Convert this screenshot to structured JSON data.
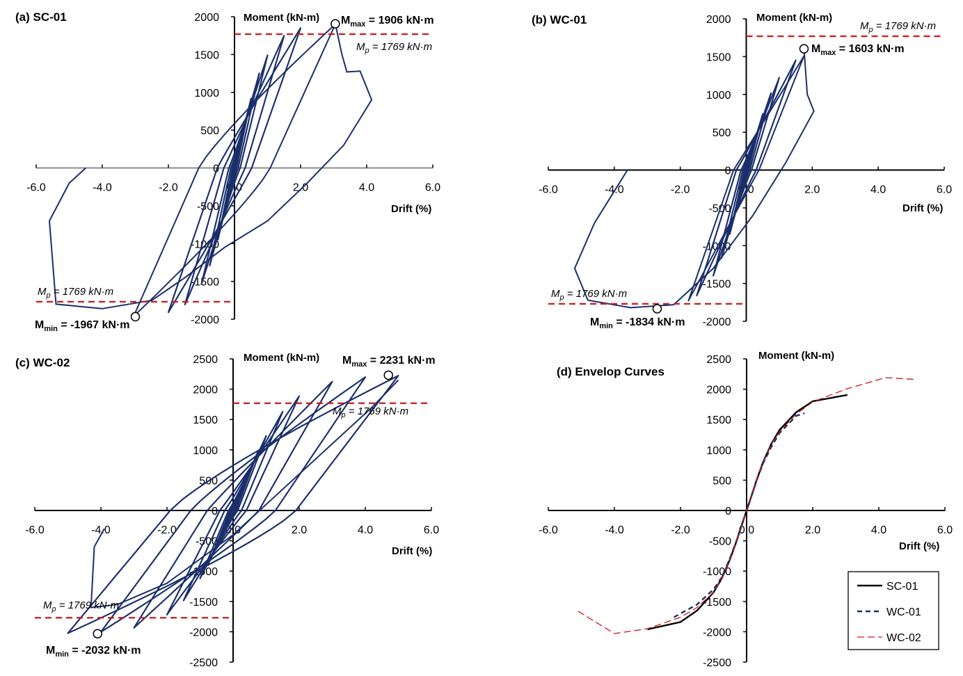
{
  "colors": {
    "curve": "#1b2f6b",
    "ref": "#cc1a1a",
    "axis": "#000000",
    "zero_gray": "#8c8c8c"
  },
  "chart_data": [
    {
      "id": "a",
      "type": "line",
      "title": "(a) SC-01",
      "xlabel": "Drift (%)",
      "ylabel": "Moment (kN-m)",
      "xlim": [
        -6,
        6
      ],
      "ylim": [
        -2000,
        2000
      ],
      "xticks": [
        "-6.0",
        "-4.0",
        "-2.0",
        "0.0",
        "2.0",
        "4.0",
        "6.0"
      ],
      "yticks": [
        "2000",
        "1500",
        "1000",
        "500",
        "0",
        "-500",
        "-1000",
        "-1500",
        "-2000"
      ],
      "mp_value": 1769,
      "mp_text": "= 1769 kN·m",
      "mp_sub": "p",
      "mp_sym": "M",
      "max": {
        "x": 3.05,
        "y": 1906,
        "sym": "M",
        "sub": "max",
        "text": "= 1906 kN·m"
      },
      "min": {
        "x": -3.0,
        "y": -1967,
        "sym": "M",
        "sub": "min",
        "text": "= -1967 kN·m"
      },
      "amplitudes": [
        0.2,
        0.2,
        0.3,
        0.3,
        0.5,
        0.5,
        0.75,
        0.75,
        1.0,
        1.0,
        1.5,
        1.5,
        2.0,
        2.0,
        3.05
      ]
    },
    {
      "id": "b",
      "type": "line",
      "title": "(b) WC-01",
      "xlabel": "Drift (%)",
      "ylabel": "Moment (kN-m)",
      "xlim": [
        -6,
        6
      ],
      "ylim": [
        -2000,
        2000
      ],
      "xticks": [
        "-6.0",
        "-4.0",
        "-2.0",
        "0.0",
        "2.0",
        "4.0",
        "6.0"
      ],
      "yticks": [
        "2000",
        "1500",
        "1000",
        "500",
        "0",
        "-500",
        "-1000",
        "-1500",
        "-2000"
      ],
      "mp_value": 1769,
      "mp_text": "= 1769 kN·m",
      "mp_sub": "p",
      "mp_sym": "M",
      "max": {
        "x": 1.75,
        "y": 1603,
        "sym": "M",
        "sub": "max",
        "text": "= 1603 kN·m"
      },
      "min": {
        "x": -2.7,
        "y": -1834,
        "sym": "M",
        "sub": "min",
        "text": "= -1834 kN·m"
      },
      "amplitudes": [
        0.2,
        0.2,
        0.3,
        0.3,
        0.5,
        0.5,
        0.75,
        0.75,
        1.0,
        1.0,
        1.5,
        1.5,
        1.75
      ]
    },
    {
      "id": "c",
      "type": "line",
      "title": "(c) WC-02",
      "xlabel": "Drift (%)",
      "ylabel": "Moment (kN-m)",
      "xlim": [
        -6,
        6
      ],
      "ylim": [
        -2500,
        2500
      ],
      "xticks": [
        "-6.0",
        "-4.0",
        "-2.0",
        "0.0",
        "2.0",
        "4.0",
        "6.0"
      ],
      "yticks": [
        "2500",
        "2000",
        "1500",
        "1000",
        "500",
        "0",
        "-500",
        "-1000",
        "-1500",
        "-2000",
        "-2500"
      ],
      "mp_value": 1769,
      "mp_text": "= 1769 kN·m",
      "mp_sub": "p",
      "mp_sym": "M",
      "max": {
        "x": 4.7,
        "y": 2231,
        "sym": "M",
        "sub": "max",
        "text": "= 2231 kN·m"
      },
      "min": {
        "x": -4.1,
        "y": -2032,
        "sym": "M",
        "sub": "min",
        "text": "= -2032 kN·m"
      },
      "amplitudes": [
        0.2,
        0.2,
        0.3,
        0.3,
        0.5,
        0.5,
        0.75,
        0.75,
        1.0,
        1.0,
        1.5,
        1.5,
        2.0,
        2.0,
        3.0,
        3.0,
        4.0,
        4.0,
        5.0,
        5.0
      ]
    },
    {
      "id": "d",
      "type": "line",
      "title": "(d) Envelop Curves",
      "xlabel": "Drift (%)",
      "ylabel": "Moment (kN-m)",
      "xlim": [
        -6,
        6
      ],
      "ylim": [
        -2500,
        2500
      ],
      "xticks": [
        "-6.0",
        "-4.0",
        "-2.0",
        "0.0",
        "2.0",
        "4.0",
        "6.0"
      ],
      "yticks": [
        "2500",
        "2000",
        "1500",
        "1000",
        "500",
        "0",
        "-500",
        "-1000",
        "-1500",
        "-2000",
        "-2500"
      ],
      "legend_position": "bottom-right",
      "series": [
        {
          "name": "SC-01",
          "style": "solid",
          "x": [
            -3.0,
            -2.0,
            -1.5,
            -1.0,
            -0.75,
            -0.5,
            -0.3,
            -0.2,
            0,
            0.2,
            0.3,
            0.5,
            0.75,
            1.0,
            1.5,
            2.0,
            3.05
          ],
          "y": [
            -1960,
            -1840,
            -1650,
            -1350,
            -1120,
            -800,
            -500,
            -330,
            0,
            330,
            500,
            800,
            1100,
            1330,
            1620,
            1800,
            1906
          ]
        },
        {
          "name": "WC-01",
          "style": "dashed",
          "x": [
            -2.2,
            -1.5,
            -1.0,
            -0.75,
            -0.5,
            -0.3,
            -0.2,
            0,
            0.2,
            0.3,
            0.5,
            0.75,
            1.0,
            1.5,
            1.75
          ],
          "y": [
            -1760,
            -1550,
            -1300,
            -1100,
            -780,
            -490,
            -320,
            0,
            320,
            490,
            780,
            1050,
            1280,
            1560,
            1603
          ]
        },
        {
          "name": "WC-02",
          "style": "dashed-hollow",
          "x": [
            -5.1,
            -4.0,
            -3.0,
            -2.0,
            -1.5,
            -1.0,
            -0.75,
            -0.5,
            -0.3,
            -0.2,
            0,
            0.2,
            0.3,
            0.5,
            0.75,
            1.0,
            1.5,
            2.0,
            3.0,
            4.2,
            5.1
          ],
          "y": [
            -1660,
            -2030,
            -1950,
            -1760,
            -1600,
            -1350,
            -1130,
            -800,
            -510,
            -340,
            0,
            340,
            510,
            800,
            1100,
            1300,
            1590,
            1790,
            2000,
            2190,
            2160
          ]
        }
      ]
    }
  ]
}
